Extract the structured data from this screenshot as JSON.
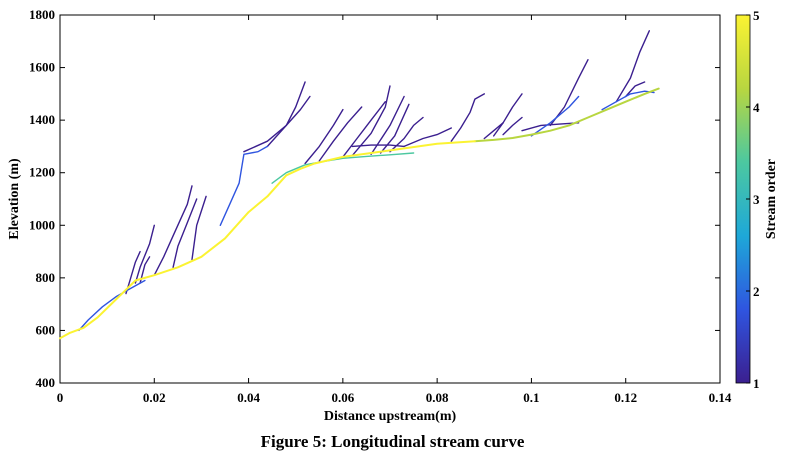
{
  "figure": {
    "caption": "Figure 5: Longitudinal stream curve"
  },
  "chart_data": {
    "type": "line",
    "title": "",
    "xlabel": "Distance upstream(m)",
    "ylabel": "Elevation (m)",
    "xlim": [
      0,
      0.14
    ],
    "ylim": [
      400,
      1800
    ],
    "x_ticks": [
      "0",
      "0.02",
      "0.04",
      "0.06",
      "0.08",
      "0.1",
      "0.12",
      "0.14"
    ],
    "y_ticks": [
      "400",
      "600",
      "800",
      "1000",
      "1200",
      "1400",
      "1600",
      "1800"
    ],
    "colorbar": {
      "label": "Stream order",
      "range": [
        1,
        5
      ],
      "ticks": [
        "1",
        "2",
        "3",
        "4",
        "5"
      ],
      "colormap": [
        "#3b1f8f",
        "#2f55e0",
        "#1ea8d8",
        "#4cc8a0",
        "#b8d640",
        "#fbf332"
      ]
    },
    "grid": false,
    "series": [
      {
        "order": 5,
        "x": [
          0,
          0.002,
          0.005,
          0.008,
          0.012,
          0.016,
          0.02,
          0.025,
          0.03,
          0.035,
          0.04,
          0.044,
          0.048,
          0.051,
          0.054,
          0.06,
          0.07,
          0.08,
          0.088
        ],
        "y": [
          570,
          590,
          610,
          650,
          720,
          790,
          810,
          840,
          880,
          950,
          1050,
          1110,
          1190,
          1215,
          1235,
          1260,
          1285,
          1310,
          1320
        ]
      },
      {
        "order": 4,
        "x": [
          0.088,
          0.092,
          0.096,
          0.1,
          0.104,
          0.108,
          0.112,
          0.116,
          0.12,
          0.124,
          0.127
        ],
        "y": [
          1320,
          1325,
          1332,
          1345,
          1360,
          1380,
          1410,
          1440,
          1470,
          1500,
          1520
        ]
      },
      {
        "order": 3,
        "x": [
          0.045,
          0.048,
          0.052,
          0.055,
          0.06,
          0.065,
          0.07,
          0.075
        ],
        "y": [
          1160,
          1200,
          1230,
          1240,
          1255,
          1262,
          1268,
          1275
        ]
      },
      {
        "order": 2,
        "x": [
          0.034,
          0.036,
          0.038,
          0.039,
          0.042,
          0.044
        ],
        "y": [
          1000,
          1080,
          1160,
          1270,
          1280,
          1300
        ]
      },
      {
        "order": 2,
        "x": [
          0.004,
          0.006,
          0.009,
          0.012,
          0.015,
          0.018
        ],
        "y": [
          600,
          640,
          690,
          730,
          760,
          790
        ]
      },
      {
        "order": 2,
        "x": [
          0.1,
          0.104,
          0.108,
          0.11
        ],
        "y": [
          1340,
          1390,
          1450,
          1490
        ]
      },
      {
        "order": 2,
        "x": [
          0.115,
          0.118,
          0.121,
          0.124,
          0.126
        ],
        "y": [
          1440,
          1470,
          1500,
          1510,
          1505
        ]
      },
      {
        "order": 1,
        "x": [
          0.014,
          0.015,
          0.016,
          0.017
        ],
        "y": [
          740,
          800,
          860,
          900
        ]
      },
      {
        "order": 1,
        "x": [
          0.016,
          0.017,
          0.019,
          0.02
        ],
        "y": [
          780,
          840,
          930,
          1000
        ]
      },
      {
        "order": 1,
        "x": [
          0.02,
          0.022,
          0.024,
          0.027,
          0.028
        ],
        "y": [
          810,
          880,
          960,
          1080,
          1150
        ]
      },
      {
        "order": 1,
        "x": [
          0.024,
          0.025,
          0.027,
          0.029
        ],
        "y": [
          840,
          920,
          1010,
          1100
        ]
      },
      {
        "order": 1,
        "x": [
          0.028,
          0.029,
          0.031
        ],
        "y": [
          870,
          1000,
          1110
        ]
      },
      {
        "order": 1,
        "x": [
          0.017,
          0.018,
          0.019
        ],
        "y": [
          780,
          850,
          880
        ]
      },
      {
        "order": 1,
        "x": [
          0.039,
          0.044,
          0.048,
          0.05,
          0.052
        ],
        "y": [
          1280,
          1320,
          1380,
          1450,
          1545
        ]
      },
      {
        "order": 1,
        "x": [
          0.044,
          0.048,
          0.051,
          0.053
        ],
        "y": [
          1300,
          1380,
          1440,
          1490
        ]
      },
      {
        "order": 1,
        "x": [
          0.052,
          0.055,
          0.058,
          0.06
        ],
        "y": [
          1235,
          1300,
          1380,
          1440
        ]
      },
      {
        "order": 1,
        "x": [
          0.055,
          0.058,
          0.061,
          0.064
        ],
        "y": [
          1245,
          1320,
          1390,
          1450
        ]
      },
      {
        "order": 1,
        "x": [
          0.06,
          0.063,
          0.066,
          0.069
        ],
        "y": [
          1260,
          1330,
          1400,
          1470
        ]
      },
      {
        "order": 1,
        "x": [
          0.062,
          0.066,
          0.069,
          0.07
        ],
        "y": [
          1265,
          1350,
          1450,
          1530
        ]
      },
      {
        "order": 1,
        "x": [
          0.066,
          0.07,
          0.073
        ],
        "y": [
          1270,
          1380,
          1490
        ]
      },
      {
        "order": 1,
        "x": [
          0.068,
          0.071,
          0.074
        ],
        "y": [
          1275,
          1340,
          1460
        ]
      },
      {
        "order": 1,
        "x": [
          0.07,
          0.073,
          0.075,
          0.077
        ],
        "y": [
          1280,
          1330,
          1380,
          1410
        ]
      },
      {
        "order": 1,
        "x": [
          0.062,
          0.066,
          0.07,
          0.073
        ],
        "y": [
          1300,
          1305,
          1305,
          1300
        ]
      },
      {
        "order": 1,
        "x": [
          0.073,
          0.077,
          0.08,
          0.083
        ],
        "y": [
          1300,
          1330,
          1345,
          1370
        ]
      },
      {
        "order": 1,
        "x": [
          0.083,
          0.085,
          0.087,
          0.088,
          0.09
        ],
        "y": [
          1320,
          1370,
          1430,
          1480,
          1500
        ]
      },
      {
        "order": 1,
        "x": [
          0.09,
          0.092,
          0.094
        ],
        "y": [
          1330,
          1360,
          1390
        ]
      },
      {
        "order": 1,
        "x": [
          0.092,
          0.094,
          0.096,
          0.098
        ],
        "y": [
          1340,
          1390,
          1450,
          1500
        ]
      },
      {
        "order": 1,
        "x": [
          0.094,
          0.096,
          0.098
        ],
        "y": [
          1345,
          1380,
          1410
        ]
      },
      {
        "order": 1,
        "x": [
          0.098,
          0.102,
          0.106,
          0.11
        ],
        "y": [
          1360,
          1380,
          1385,
          1390
        ]
      },
      {
        "order": 1,
        "x": [
          0.104,
          0.107,
          0.11,
          0.112
        ],
        "y": [
          1380,
          1450,
          1560,
          1630
        ]
      },
      {
        "order": 1,
        "x": [
          0.118,
          0.121,
          0.123,
          0.125
        ],
        "y": [
          1470,
          1560,
          1660,
          1740
        ]
      },
      {
        "order": 1,
        "x": [
          0.12,
          0.122,
          0.124
        ],
        "y": [
          1490,
          1530,
          1545
        ]
      }
    ]
  }
}
